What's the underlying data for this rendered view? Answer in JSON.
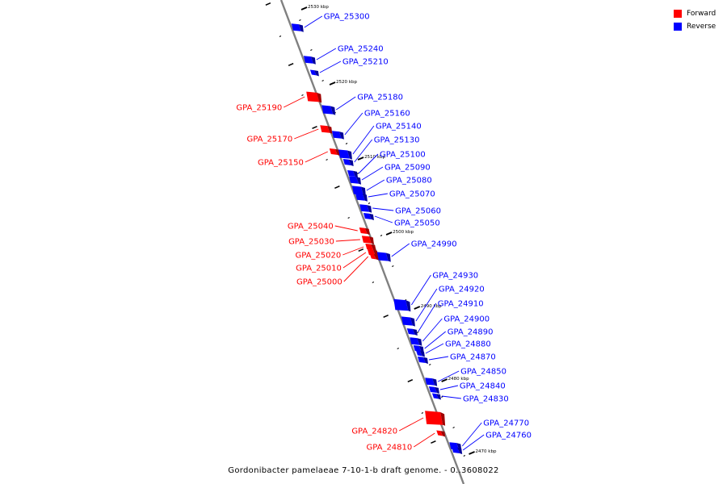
{
  "colors": {
    "forward": "#ff0000",
    "forward_dark": "#a00000",
    "reverse": "#0000ff",
    "reverse_dark": "#000099",
    "backbone": "#808080"
  },
  "legend": {
    "forward": "Forward",
    "reverse": "Reverse"
  },
  "caption": "Gordonibacter pamelaeae 7-10-1-b draft genome. - 0..3608022",
  "ticks": [
    "2530 kbp",
    "2520 kbp",
    "2510 kbp",
    "2500 kbp",
    "2490 kbp",
    "2480 kbp",
    "2470 kbp"
  ],
  "genes": [
    {
      "label": "GPA_25300",
      "strand": "reverse"
    },
    {
      "label": "GPA_25240",
      "strand": "reverse"
    },
    {
      "label": "GPA_25210",
      "strand": "reverse"
    },
    {
      "label": "GPA_25190",
      "strand": "forward"
    },
    {
      "label": "GPA_25180",
      "strand": "reverse"
    },
    {
      "label": "GPA_25170",
      "strand": "forward"
    },
    {
      "label": "GPA_25160",
      "strand": "reverse"
    },
    {
      "label": "GPA_25150",
      "strand": "forward"
    },
    {
      "label": "GPA_25140",
      "strand": "reverse"
    },
    {
      "label": "GPA_25130",
      "strand": "reverse"
    },
    {
      "label": "GPA_25100",
      "strand": "reverse"
    },
    {
      "label": "GPA_25090",
      "strand": "reverse"
    },
    {
      "label": "GPA_25080",
      "strand": "reverse"
    },
    {
      "label": "GPA_25070",
      "strand": "reverse"
    },
    {
      "label": "GPA_25060",
      "strand": "reverse"
    },
    {
      "label": "GPA_25050",
      "strand": "reverse"
    },
    {
      "label": "GPA_25040",
      "strand": "forward"
    },
    {
      "label": "GPA_25030",
      "strand": "forward"
    },
    {
      "label": "GPA_25020",
      "strand": "forward"
    },
    {
      "label": "GPA_25010",
      "strand": "forward"
    },
    {
      "label": "GPA_25000",
      "strand": "forward"
    },
    {
      "label": "GPA_24990",
      "strand": "reverse"
    },
    {
      "label": "GPA_24930",
      "strand": "reverse"
    },
    {
      "label": "GPA_24920",
      "strand": "reverse"
    },
    {
      "label": "GPA_24910",
      "strand": "reverse"
    },
    {
      "label": "GPA_24900",
      "strand": "reverse"
    },
    {
      "label": "GPA_24890",
      "strand": "reverse"
    },
    {
      "label": "GPA_24880",
      "strand": "reverse"
    },
    {
      "label": "GPA_24870",
      "strand": "reverse"
    },
    {
      "label": "GPA_24850",
      "strand": "reverse"
    },
    {
      "label": "GPA_24840",
      "strand": "reverse"
    },
    {
      "label": "GPA_24830",
      "strand": "reverse"
    },
    {
      "label": "GPA_24820",
      "strand": "forward"
    },
    {
      "label": "GPA_24810",
      "strand": "forward"
    },
    {
      "label": "GPA_24770",
      "strand": "reverse"
    },
    {
      "label": "GPA_24760",
      "strand": "reverse"
    }
  ]
}
